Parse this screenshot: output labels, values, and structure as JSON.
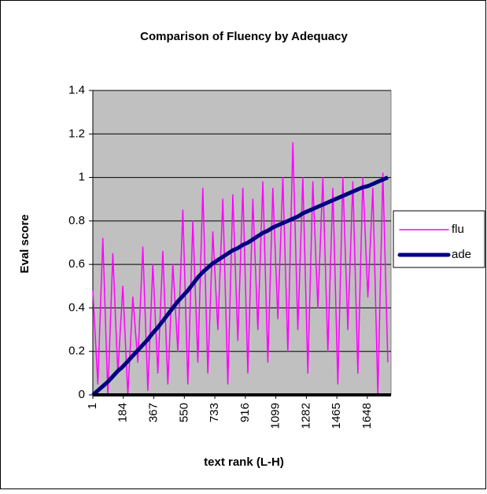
{
  "chart_data": {
    "type": "line",
    "title": "Comparison of Fluency by Adequacy",
    "x_label": "text rank (L-H)",
    "y_label": "Eval score",
    "x": [
      1,
      31,
      61,
      91,
      121,
      151,
      181,
      211,
      241,
      271,
      301,
      331,
      361,
      391,
      421,
      451,
      481,
      511,
      541,
      571,
      601,
      631,
      661,
      691,
      721,
      751,
      781,
      811,
      841,
      871,
      901,
      931,
      961,
      991,
      1021,
      1051,
      1081,
      1111,
      1141,
      1171,
      1201,
      1231,
      1261,
      1291,
      1321,
      1351,
      1381,
      1411,
      1441,
      1471,
      1501,
      1531,
      1561,
      1591,
      1621,
      1651,
      1681,
      1711,
      1741,
      1771
    ],
    "series": [
      {
        "name": "flu",
        "color": "#ff00ff",
        "width": 1.5,
        "values": [
          0.48,
          0.05,
          0.72,
          0,
          0.65,
          0.1,
          0.5,
          0,
          0.45,
          0.15,
          0.68,
          0.02,
          0.6,
          0.1,
          0.66,
          0.05,
          0.6,
          0.2,
          0.85,
          0.05,
          0.8,
          0.15,
          0.95,
          0.1,
          0.75,
          0.3,
          0.9,
          0.05,
          0.92,
          0.25,
          0.95,
          0.1,
          0.9,
          0.3,
          0.98,
          0.15,
          0.95,
          0.35,
          1.0,
          0.2,
          1.16,
          0.3,
          1.0,
          0.1,
          0.98,
          0.4,
          1.0,
          0.2,
          0.95,
          0.05,
          1.0,
          0.3,
          0.98,
          0.1,
          1.0,
          0.45,
          0.95,
          0.0,
          1.02,
          0.15
        ]
      },
      {
        "name": "ade",
        "color": "#000080",
        "width": 5,
        "values": [
          0,
          0.02,
          0.04,
          0.06,
          0.085,
          0.11,
          0.13,
          0.155,
          0.18,
          0.205,
          0.23,
          0.255,
          0.285,
          0.31,
          0.34,
          0.37,
          0.4,
          0.43,
          0.455,
          0.48,
          0.51,
          0.54,
          0.565,
          0.585,
          0.605,
          0.62,
          0.635,
          0.65,
          0.665,
          0.675,
          0.69,
          0.7,
          0.715,
          0.73,
          0.745,
          0.755,
          0.77,
          0.78,
          0.79,
          0.8,
          0.81,
          0.82,
          0.835,
          0.845,
          0.855,
          0.865,
          0.875,
          0.885,
          0.895,
          0.905,
          0.915,
          0.925,
          0.935,
          0.945,
          0.955,
          0.96,
          0.97,
          0.98,
          0.99,
          1.0
        ]
      }
    ],
    "xlim": [
      1,
      1790
    ],
    "xticks": [
      1,
      184,
      367,
      550,
      733,
      916,
      1099,
      1282,
      1465,
      1648
    ],
    "ylim": [
      0,
      1.4
    ],
    "yticks": [
      0,
      0.2,
      0.4,
      0.6,
      0.8,
      1,
      1.2,
      1.4
    ],
    "grid": true,
    "legend": "right",
    "plot_bg": "#c0c0c0"
  }
}
